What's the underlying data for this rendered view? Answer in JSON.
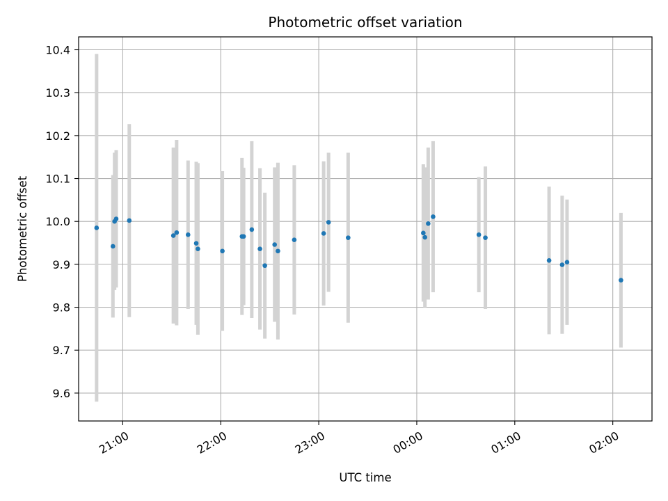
{
  "chart_data": {
    "type": "scatter",
    "title": "Photometric offset variation",
    "xlabel": "UTC time",
    "ylabel": "Photometric offset",
    "x_unit": "UTC time (HH:MM)",
    "xlim": [
      "20:33",
      "02:24"
    ],
    "ylim": [
      9.535,
      10.43
    ],
    "grid": true,
    "colors": {
      "point": "#1f77b4",
      "errorbar": "#d3d3d3"
    },
    "x_ticks": [
      {
        "time": "21:00",
        "label": "21:00"
      },
      {
        "time": "22:00",
        "label": "22:00"
      },
      {
        "time": "23:00",
        "label": "23:00"
      },
      {
        "time": "00:00",
        "label": "00:00"
      },
      {
        "time": "01:00",
        "label": "01:00"
      },
      {
        "time": "02:00",
        "label": "02:00"
      }
    ],
    "y_ticks": [
      {
        "value": 9.6,
        "label": "9.6"
      },
      {
        "value": 9.7,
        "label": "9.7"
      },
      {
        "value": 9.8,
        "label": "9.8"
      },
      {
        "value": 9.9,
        "label": "9.9"
      },
      {
        "value": 10.0,
        "label": "10.0"
      },
      {
        "value": 10.1,
        "label": "10.1"
      },
      {
        "value": 10.2,
        "label": "10.2"
      },
      {
        "value": 10.3,
        "label": "10.3"
      },
      {
        "value": 10.4,
        "label": "10.4"
      }
    ],
    "points": [
      {
        "time": "20:44",
        "y": 9.985,
        "err": 0.405
      },
      {
        "time": "20:54",
        "y": 9.942,
        "err": 0.166
      },
      {
        "time": "20:55",
        "y": 10.0,
        "err": 0.16
      },
      {
        "time": "20:56",
        "y": 10.006,
        "err": 0.16
      },
      {
        "time": "21:04",
        "y": 10.002,
        "err": 0.225
      },
      {
        "time": "21:31",
        "y": 9.967,
        "err": 0.205
      },
      {
        "time": "21:33",
        "y": 9.974,
        "err": 0.216
      },
      {
        "time": "21:40",
        "y": 9.969,
        "err": 0.173
      },
      {
        "time": "21:45",
        "y": 9.949,
        "err": 0.19
      },
      {
        "time": "21:46",
        "y": 9.936,
        "err": 0.2
      },
      {
        "time": "22:01",
        "y": 9.931,
        "err": 0.186
      },
      {
        "time": "22:13",
        "y": 9.965,
        "err": 0.183
      },
      {
        "time": "22:14",
        "y": 9.965,
        "err": 0.16
      },
      {
        "time": "22:19",
        "y": 9.981,
        "err": 0.206
      },
      {
        "time": "22:24",
        "y": 9.936,
        "err": 0.188
      },
      {
        "time": "22:27",
        "y": 9.897,
        "err": 0.17
      },
      {
        "time": "22:33",
        "y": 9.946,
        "err": 0.18
      },
      {
        "time": "22:35",
        "y": 9.931,
        "err": 0.206
      },
      {
        "time": "22:45",
        "y": 9.957,
        "err": 0.174
      },
      {
        "time": "23:03",
        "y": 9.972,
        "err": 0.168
      },
      {
        "time": "23:06",
        "y": 9.998,
        "err": 0.162
      },
      {
        "time": "23:18",
        "y": 9.962,
        "err": 0.198
      },
      {
        "time": "00:04",
        "y": 9.973,
        "err": 0.16
      },
      {
        "time": "00:05",
        "y": 9.963,
        "err": 0.163
      },
      {
        "time": "00:07",
        "y": 9.995,
        "err": 0.177
      },
      {
        "time": "00:10",
        "y": 10.011,
        "err": 0.176
      },
      {
        "time": "00:38",
        "y": 9.969,
        "err": 0.134
      },
      {
        "time": "00:42",
        "y": 9.962,
        "err": 0.166
      },
      {
        "time": "01:21",
        "y": 9.909,
        "err": 0.172
      },
      {
        "time": "01:29",
        "y": 9.899,
        "err": 0.161
      },
      {
        "time": "01:32",
        "y": 9.905,
        "err": 0.146
      },
      {
        "time": "02:05",
        "y": 9.863,
        "err": 0.157
      }
    ]
  }
}
